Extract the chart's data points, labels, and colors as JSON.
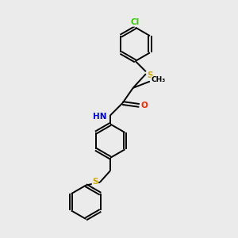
{
  "background_color": "#ebebeb",
  "bond_color": "#000000",
  "atom_colors": {
    "Cl": "#33cc00",
    "S": "#ccaa00",
    "N": "#0000ee",
    "O": "#ff2200",
    "H": "#666666",
    "C": "#000000"
  },
  "figsize": [
    3.0,
    3.0
  ],
  "dpi": 100,
  "lw": 1.4
}
